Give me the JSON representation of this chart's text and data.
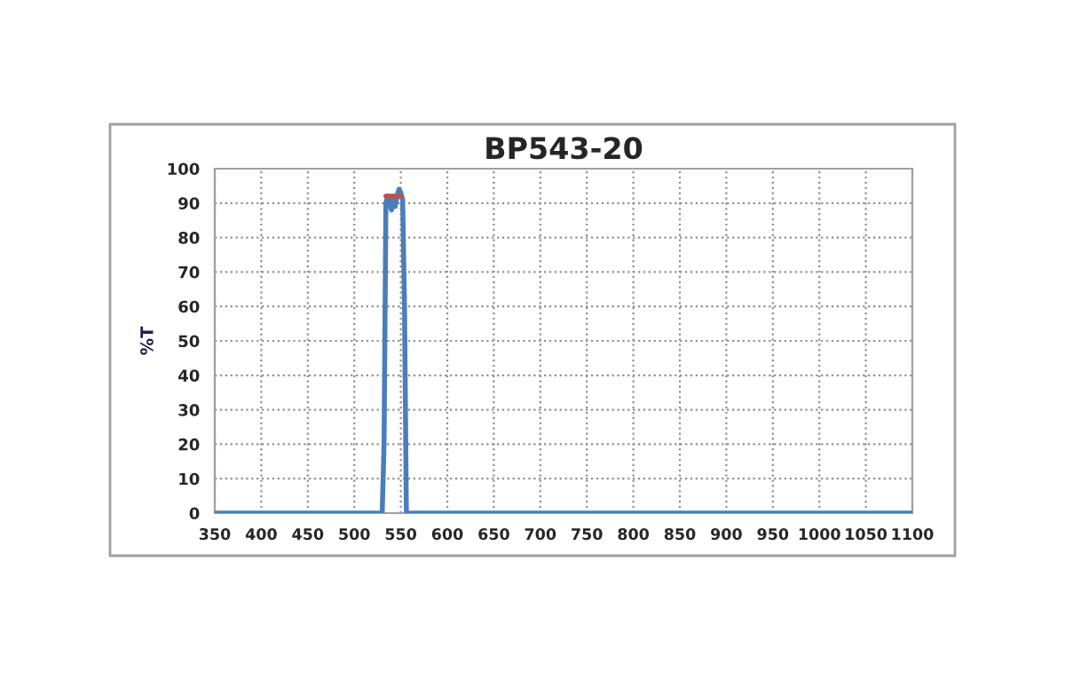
{
  "chart_data": {
    "type": "line",
    "title": "BP543-20",
    "ylabel": "%T",
    "series": [
      {
        "color": "#4a7ebb",
        "x": [
          350,
          530,
          532,
          534,
          536,
          538,
          540,
          542,
          544,
          546,
          548,
          550,
          552,
          554,
          556,
          1100
        ],
        "values": [
          0,
          0,
          20,
          90,
          92,
          90,
          88,
          91,
          89,
          92,
          94,
          93,
          91,
          60,
          0,
          0
        ]
      },
      {
        "color": "#c0504d",
        "x": [
          534,
          550
        ],
        "values": [
          92,
          92
        ]
      }
    ],
    "xlim": [
      350,
      1100
    ],
    "xticks": [
      350,
      400,
      450,
      500,
      550,
      600,
      650,
      700,
      750,
      800,
      850,
      900,
      950,
      1000,
      1050,
      1100
    ],
    "ylim": [
      0,
      100
    ],
    "yticks": [
      0,
      10,
      20,
      30,
      40,
      50,
      60,
      70,
      80,
      90,
      100
    ],
    "grid": true,
    "marker": "none",
    "line_style": "solid"
  }
}
